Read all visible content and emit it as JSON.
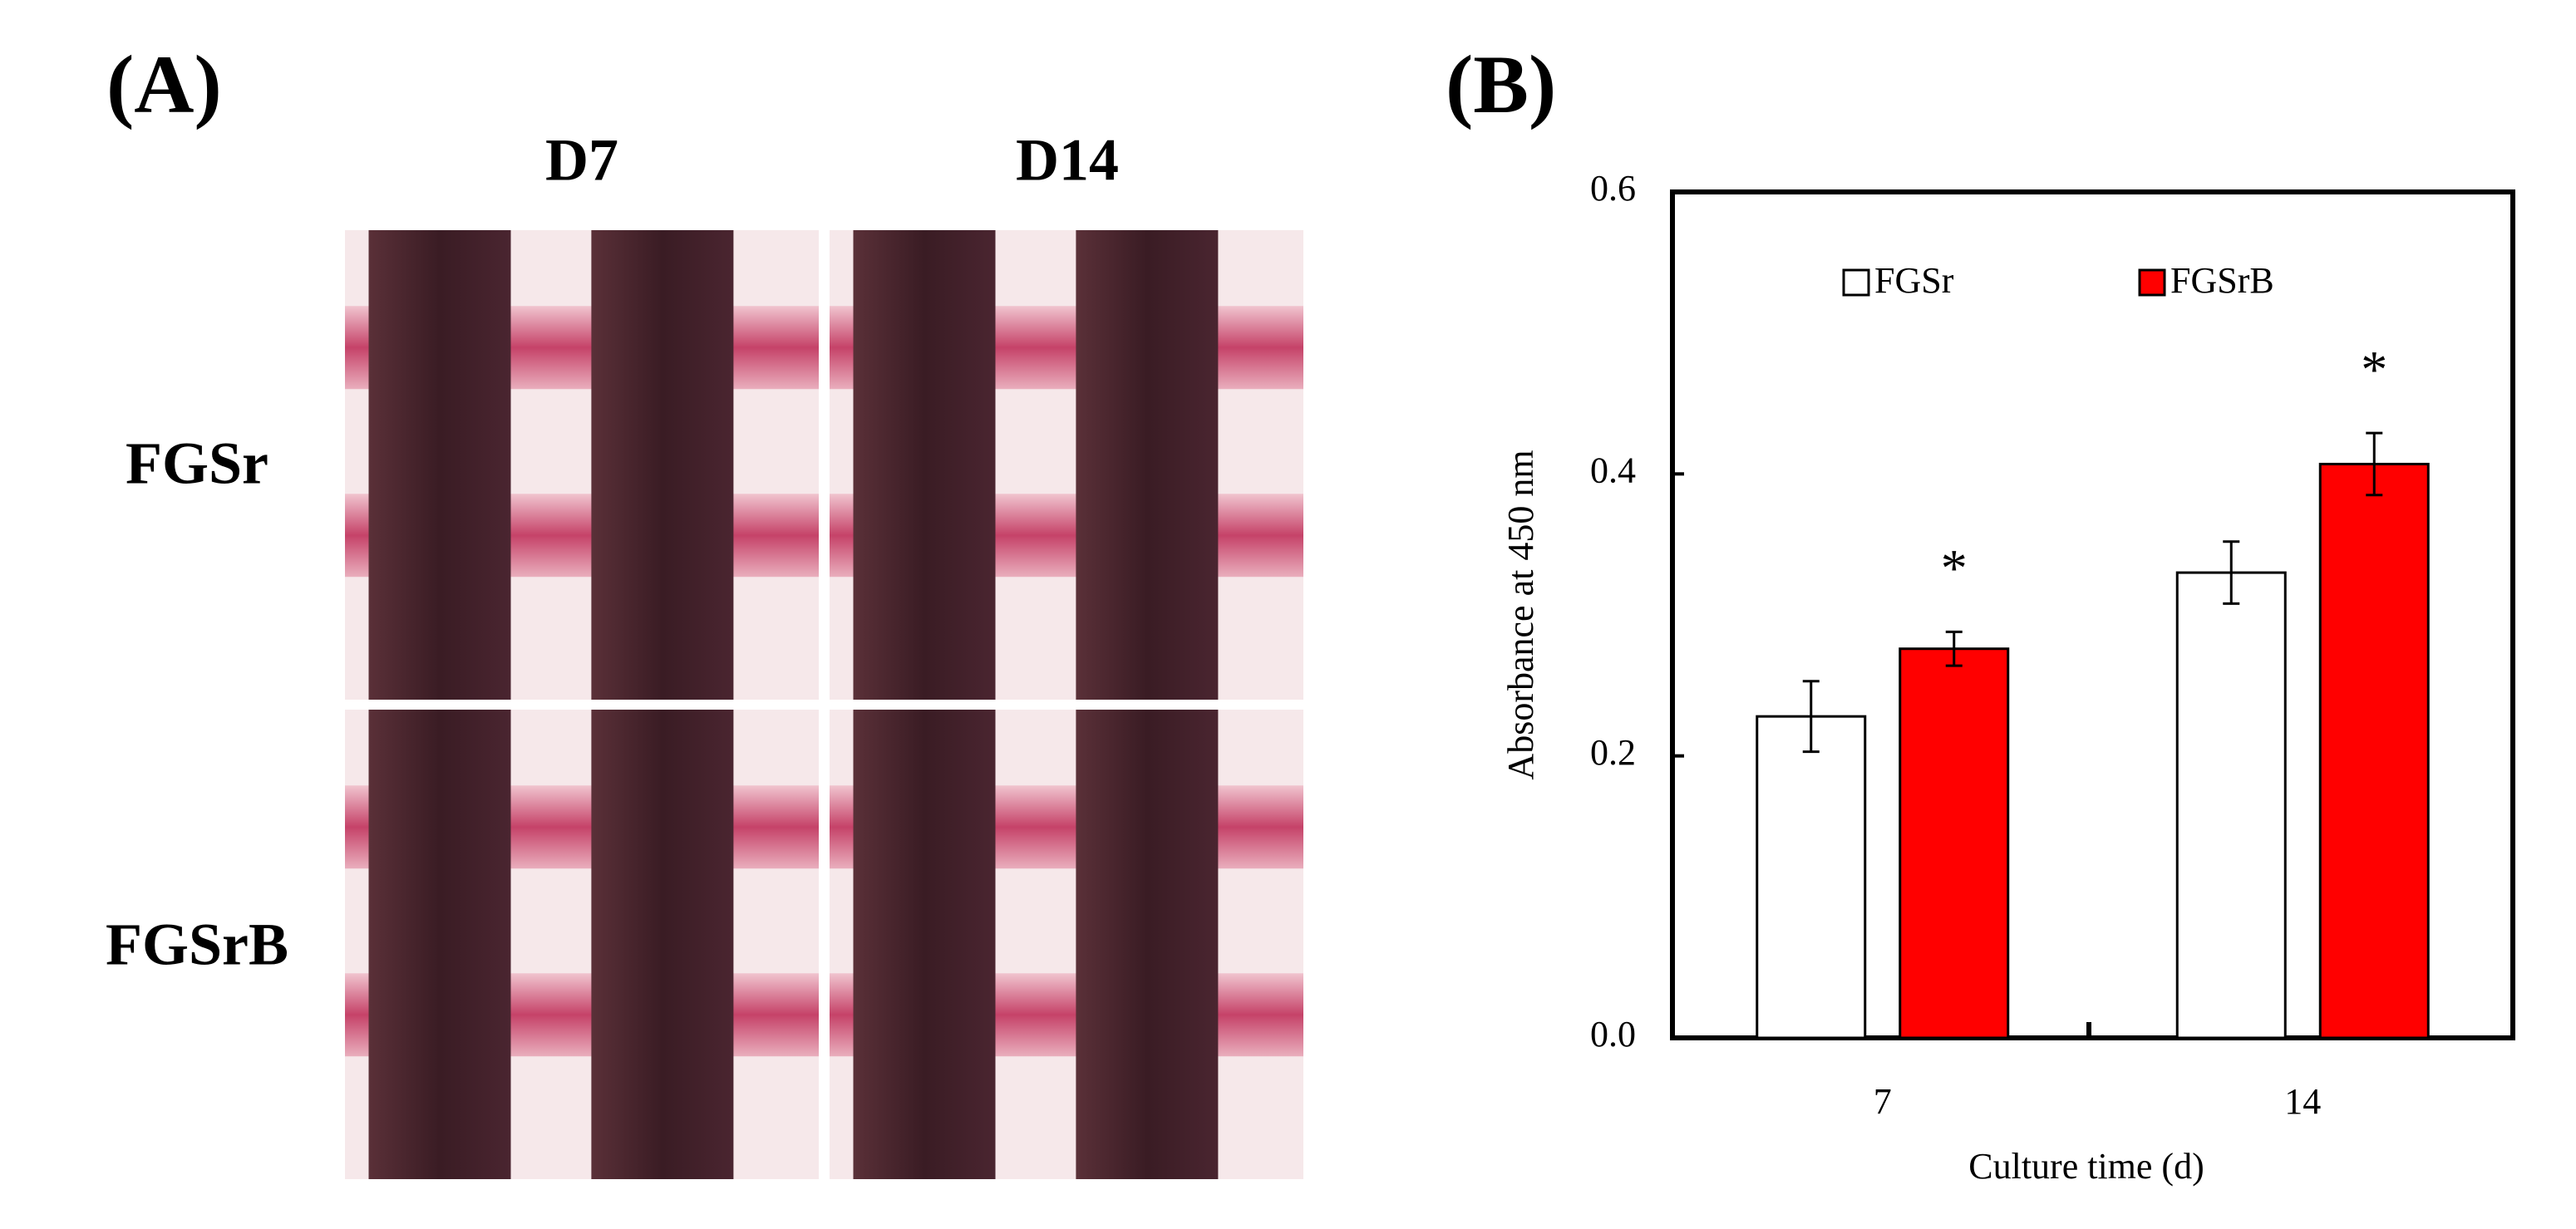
{
  "panel_a": {
    "label": "(A)",
    "columns": [
      "D7",
      "D14"
    ],
    "rows": [
      "FGSr",
      "FGSrB"
    ]
  },
  "panel_b": {
    "label": "(B)"
  },
  "chart_data": {
    "type": "bar",
    "categories": [
      "7",
      "14"
    ],
    "series": [
      {
        "name": "FGSr",
        "color": "#ffffff",
        "values": [
          0.228,
          0.33
        ],
        "errors": [
          0.025,
          0.022
        ]
      },
      {
        "name": "FGSrB",
        "color": "#ff0000",
        "values": [
          0.276,
          0.407
        ],
        "errors": [
          0.012,
          0.022
        ]
      }
    ],
    "annotations": [
      "*",
      "*"
    ],
    "x_label": "Culture time (d)",
    "y_label": "Absorbance at 450 nm",
    "ylim": [
      0,
      0.6
    ],
    "yticks": [
      {
        "value": 0,
        "label": "0.0"
      },
      0.2,
      0.4,
      0.6
    ],
    "legend": "top"
  }
}
